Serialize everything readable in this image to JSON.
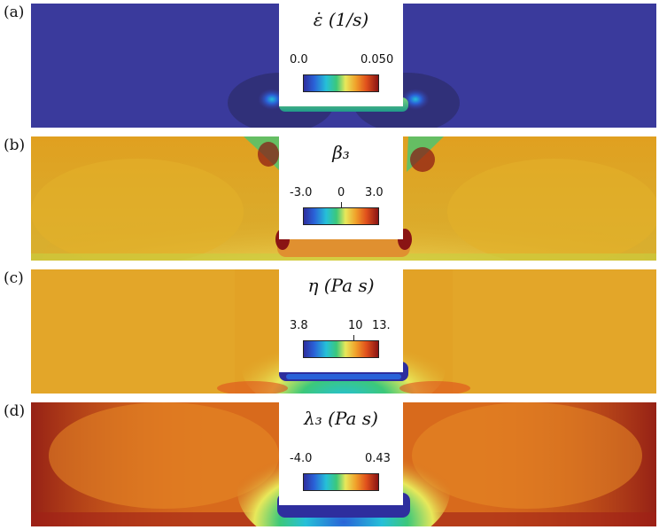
{
  "panels": [
    {
      "label": "(a)",
      "title": "ε̇ (1/s)",
      "ticks": [
        "0.0",
        "0.050"
      ]
    },
    {
      "label": "(b)",
      "title": "β₃",
      "ticks": [
        "-3.0",
        "0",
        "3.0"
      ]
    },
    {
      "label": "(c)",
      "title": "η (Pa s)",
      "ticks": [
        "3.8",
        "10",
        "13."
      ]
    },
    {
      "label": "(d)",
      "title": "λ₃ (Pa s)",
      "ticks": [
        "-4.0",
        "0.43"
      ]
    }
  ],
  "colors": {
    "panel_a_background": "#3a3a9c",
    "panel_b_background": "#e0a020",
    "panel_c_background": "#e2a226",
    "panel_d_background": "#d86a1c",
    "colormap": [
      "#2e2e9e",
      "#2a62d8",
      "#25c0d8",
      "#3cc87a",
      "#e8e85a",
      "#f0a02a",
      "#e0501c",
      "#8a1414"
    ]
  }
}
